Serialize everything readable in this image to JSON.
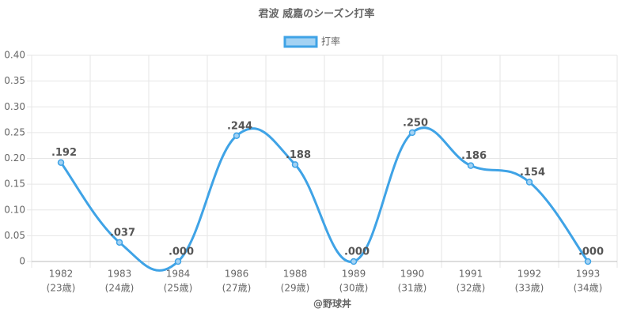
{
  "chart_data": {
    "type": "line",
    "title": "君波 威嘉のシーズン打率",
    "categories": [
      "1982",
      "1983",
      "1984",
      "1986",
      "1988",
      "1989",
      "1990",
      "1991",
      "1992",
      "1993"
    ],
    "category_sublabels": [
      "(23歳)",
      "(24歳)",
      "(25歳)",
      "(27歳)",
      "(29歳)",
      "(30歳)",
      "(31歳)",
      "(32歳)",
      "(33歳)",
      "(34歳)"
    ],
    "series": [
      {
        "name": "打率",
        "color": "#3fa3e6",
        "fill": "#a3d2f3",
        "values": [
          0.192,
          0.037,
          0,
          0.244,
          0.188,
          0,
          0.25,
          0.186,
          0.154,
          0
        ],
        "value_labels": [
          ".192",
          ".037",
          ".000",
          ".244",
          ".188",
          ".000",
          ".250",
          ".186",
          ".154",
          ".000"
        ]
      }
    ],
    "ylim": [
      0,
      0.4
    ],
    "yticks": [
      0,
      0.05,
      {
        "value": 0.1,
        "label": "0.10"
      },
      0.15,
      {
        "value": 0.2,
        "label": "0.20"
      },
      0.25,
      {
        "value": 0.3,
        "label": "0.30"
      },
      0.35,
      {
        "value": 0.4,
        "label": "0.40"
      }
    ],
    "grid": true,
    "legend": "top",
    "footer": "@野球丼"
  }
}
